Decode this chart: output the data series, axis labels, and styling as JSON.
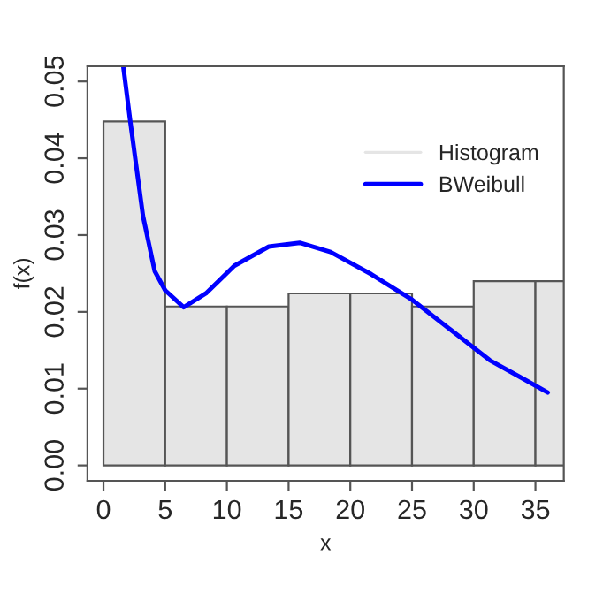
{
  "chart_data": {
    "type": "histogram",
    "xlabel": "x",
    "ylabel": "f(x)",
    "xlim": [
      -1.3,
      37.3
    ],
    "ylim": [
      -0.002,
      0.052
    ],
    "xticks": [
      0,
      5,
      10,
      15,
      20,
      25,
      30,
      35
    ],
    "yticks": [
      {
        "value": 0,
        "label": "0.00"
      },
      {
        "value": 0.01,
        "label": "0.01"
      },
      {
        "value": 0.02,
        "label": "0.02"
      },
      {
        "value": 0.03,
        "label": "0.03"
      },
      {
        "value": 0.04,
        "label": "0.04"
      },
      {
        "value": 0.05,
        "label": "0.05"
      }
    ],
    "grid": false,
    "legend": "top right",
    "series": [
      {
        "name": "Histogram",
        "color": "#e5e5e5",
        "bins": [
          0,
          5,
          10,
          15,
          20,
          25,
          30,
          35,
          40
        ],
        "values": [
          0.0448,
          0.0207,
          0.0207,
          0.0224,
          0.0224,
          0.0207,
          0.024,
          0.024
        ]
      },
      {
        "name": "BWeibull",
        "type": "line",
        "color": "#0000ff",
        "x": [
          1.6,
          2.17,
          3.2,
          4.15,
          5,
          6.5,
          8.3,
          10.6,
          13.4,
          15.9,
          18.4,
          21.7,
          24.9,
          28.1,
          31.3,
          34.1,
          36
        ],
        "values": [
          0.052,
          0.0448,
          0.0325,
          0.0253,
          0.0228,
          0.0206,
          0.0224,
          0.026,
          0.0285,
          0.029,
          0.0278,
          0.0249,
          0.0217,
          0.0177,
          0.0137,
          0.0112,
          0.0095
        ]
      }
    ]
  }
}
